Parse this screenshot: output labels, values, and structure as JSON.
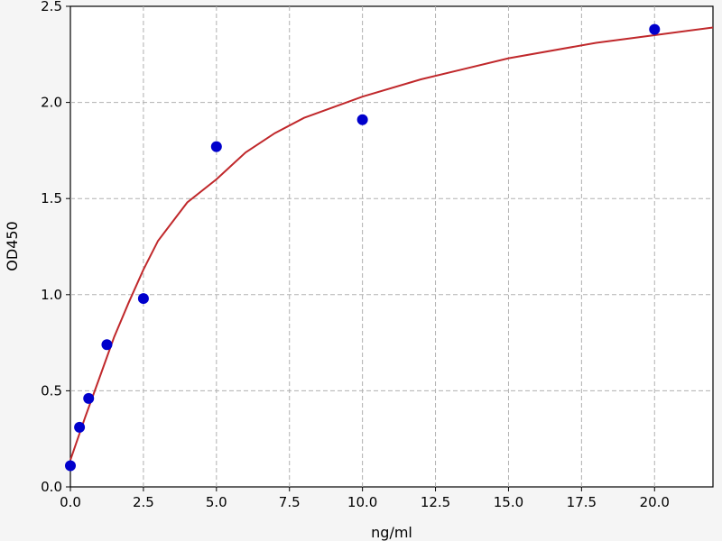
{
  "chart_data": {
    "type": "scatter",
    "xlabel": "ng/ml",
    "ylabel": "OD450",
    "xlim": [
      0,
      22
    ],
    "ylim": [
      0,
      2.5
    ],
    "grid": true,
    "x_ticks": [
      "0.0",
      "2.5",
      "5.0",
      "7.5",
      "10.0",
      "12.5",
      "15.0",
      "17.5",
      "20.0"
    ],
    "y_ticks": [
      "0.0",
      "0.5",
      "1.0",
      "1.5",
      "2.0",
      "2.5"
    ],
    "series": [
      {
        "type": "scatter",
        "x": [
          0,
          0.3125,
          0.625,
          1.25,
          2.5,
          5,
          10,
          20
        ],
        "y": [
          0.11,
          0.31,
          0.46,
          0.74,
          0.98,
          1.77,
          1.91,
          2.38
        ]
      },
      {
        "type": "line",
        "x": [
          0,
          0.5,
          1,
          1.5,
          2,
          2.5,
          3,
          4,
          5,
          6,
          7,
          8,
          10,
          12,
          15,
          18,
          20,
          22
        ],
        "y": [
          0.14,
          0.36,
          0.57,
          0.78,
          0.96,
          1.13,
          1.28,
          1.48,
          1.6,
          1.74,
          1.84,
          1.92,
          2.03,
          2.12,
          2.23,
          2.31,
          2.35,
          2.39
        ]
      }
    ],
    "colors": {
      "points": "#0000cc",
      "curve": "#c0282b"
    }
  }
}
